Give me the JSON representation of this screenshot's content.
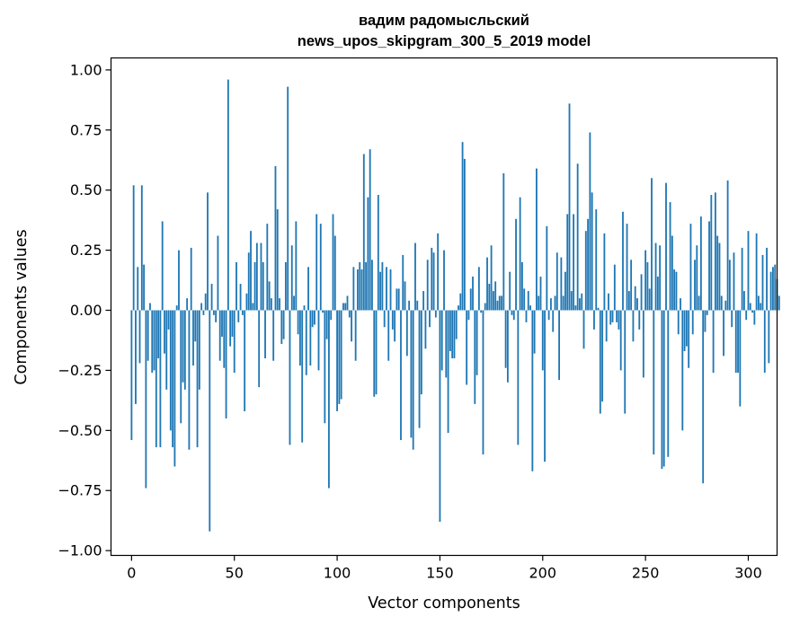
{
  "chart_data": {
    "type": "bar",
    "title_line1": "вадим радомысльский",
    "title_line2": "news_upos_skipgram_300_5_2019 model",
    "xlabel": "Vector components",
    "ylabel": "Components values",
    "xlim": [
      -10,
      314
    ],
    "ylim": [
      -1.02,
      1.05
    ],
    "xticks": [
      0,
      50,
      100,
      150,
      200,
      250,
      300
    ],
    "xtick_labels": [
      "0",
      "50",
      "100",
      "150",
      "200",
      "250",
      "300"
    ],
    "yticks": [
      -1.0,
      -0.75,
      -0.5,
      -0.25,
      0.0,
      0.25,
      0.5,
      0.75,
      1.0
    ],
    "ytick_labels": [
      "−1.00",
      "−0.75",
      "−0.50",
      "−0.25",
      "0.00",
      "0.25",
      "0.50",
      "0.75",
      "1.00"
    ],
    "bar_color": "#1f77b4",
    "values": [
      -0.54,
      0.52,
      -0.39,
      0.18,
      -0.22,
      0.52,
      0.19,
      -0.74,
      -0.21,
      0.03,
      -0.26,
      -0.25,
      -0.57,
      -0.2,
      -0.57,
      0.37,
      -0.18,
      -0.33,
      -0.08,
      -0.5,
      -0.57,
      -0.65,
      0.02,
      0.25,
      -0.47,
      -0.3,
      -0.33,
      0.05,
      -0.58,
      0.26,
      -0.23,
      -0.13,
      -0.57,
      -0.33,
      0.03,
      -0.02,
      0.07,
      0.49,
      -0.92,
      0.11,
      -0.02,
      -0.05,
      0.31,
      -0.21,
      -0.11,
      -0.24,
      -0.45,
      0.96,
      -0.15,
      -0.11,
      -0.26,
      0.2,
      -0.05,
      0.11,
      -0.02,
      -0.42,
      0.07,
      0.24,
      0.33,
      0.03,
      0.2,
      0.28,
      -0.32,
      0.28,
      0.2,
      -0.2,
      0.36,
      0.12,
      0.05,
      -0.21,
      0.6,
      0.42,
      0.05,
      -0.14,
      -0.12,
      0.2,
      0.93,
      -0.56,
      0.27,
      0.06,
      0.37,
      -0.1,
      -0.23,
      -0.55,
      0.02,
      -0.27,
      0.18,
      -0.23,
      -0.07,
      -0.06,
      0.4,
      -0.25,
      0.36,
      -0.01,
      -0.47,
      -0.12,
      -0.74,
      -0.04,
      0.4,
      0.31,
      -0.42,
      -0.39,
      -0.37,
      0.03,
      0.03,
      0.06,
      -0.03,
      -0.13,
      0.18,
      -0.21,
      0.17,
      0.2,
      0.17,
      0.65,
      0.2,
      0.47,
      0.67,
      0.21,
      -0.36,
      -0.35,
      0.48,
      0.16,
      0.2,
      -0.07,
      0.18,
      -0.21,
      0.17,
      -0.08,
      -0.13,
      0.09,
      0.09,
      -0.54,
      0.23,
      0.12,
      -0.19,
      0.04,
      -0.53,
      -0.58,
      0.28,
      0.04,
      -0.49,
      -0.35,
      0.08,
      -0.16,
      0.21,
      -0.07,
      0.26,
      0.24,
      -0.03,
      0.32,
      -0.88,
      -0.25,
      0.25,
      -0.28,
      -0.51,
      -0.17,
      -0.2,
      -0.2,
      -0.12,
      0.02,
      0.07,
      0.7,
      0.63,
      -0.31,
      -0.04,
      0.09,
      0.14,
      -0.39,
      -0.27,
      0.18,
      -0.01,
      -0.6,
      0.03,
      0.22,
      0.11,
      0.27,
      0.08,
      0.12,
      0.04,
      0.06,
      0.06,
      0.57,
      -0.24,
      -0.3,
      0.16,
      -0.02,
      -0.04,
      0.38,
      -0.56,
      0.47,
      0.2,
      0.09,
      -0.05,
      0.08,
      0.02,
      -0.67,
      -0.18,
      0.59,
      0.06,
      0.14,
      -0.25,
      -0.63,
      0.35,
      -0.04,
      0.05,
      -0.09,
      0.06,
      0.24,
      -0.29,
      0.22,
      0.06,
      0.16,
      0.4,
      0.86,
      0.08,
      0.4,
      0.02,
      0.61,
      0.05,
      0.07,
      -0.16,
      0.33,
      0.38,
      0.74,
      0.49,
      -0.08,
      0.42,
      0.01,
      -0.43,
      -0.38,
      0.32,
      -0.13,
      0.07,
      -0.06,
      -0.05,
      0.19,
      -0.05,
      -0.08,
      -0.25,
      0.41,
      -0.43,
      0.36,
      0.08,
      0.21,
      -0.13,
      0.1,
      0.05,
      -0.08,
      0.15,
      -0.28,
      0.25,
      0.2,
      0.09,
      0.55,
      -0.6,
      0.28,
      0.14,
      0.27,
      -0.66,
      -0.65,
      0.53,
      -0.61,
      0.45,
      0.31,
      0.17,
      0.16,
      -0.1,
      0.05,
      -0.5,
      -0.17,
      -0.15,
      -0.24,
      0.36,
      -0.1,
      0.21,
      0.27,
      0.06,
      0.39,
      -0.72,
      -0.09,
      -0.02,
      0.37,
      0.48,
      -0.26,
      0.49,
      0.31,
      0.28,
      0.06,
      -0.19,
      0.04,
      0.54,
      0.21,
      -0.07,
      0.24,
      -0.26,
      -0.26,
      -0.4,
      0.26,
      0.08,
      -0.04,
      0.33,
      0.03,
      -0.01,
      -0.06,
      0.32,
      0.06,
      0.03,
      0.23,
      -0.26,
      0.26,
      -0.22,
      0.16,
      0.18,
      0.19,
      0.13,
      0.06
    ]
  }
}
